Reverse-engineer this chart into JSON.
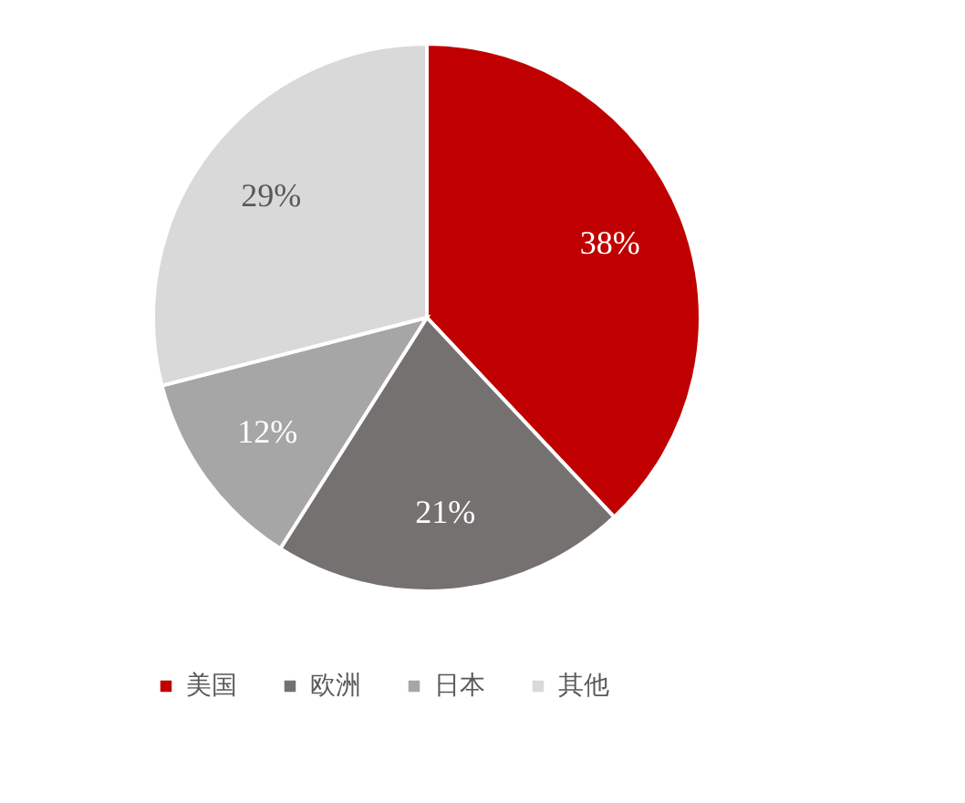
{
  "chart_data": {
    "type": "pie",
    "categories": [
      "美国",
      "欧洲",
      "日本",
      "其他"
    ],
    "values": [
      38,
      21,
      12,
      29
    ],
    "value_labels": [
      "38%",
      "21%",
      "12%",
      "29%"
    ],
    "colors": [
      "#c00000",
      "#767171",
      "#a6a6a6",
      "#d9d9d9"
    ],
    "legend": "bottom"
  }
}
